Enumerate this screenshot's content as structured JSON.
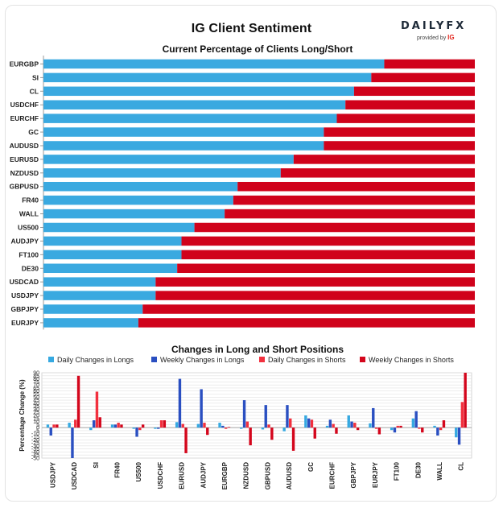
{
  "header": {
    "title": "IG Client Sentiment",
    "logo_main": "DAILYFX",
    "logo_sub": "provided by",
    "logo_brand": "IG"
  },
  "colors": {
    "long": "#3aa9e0",
    "short": "#d0021b",
    "daily_long": "#36a9e1",
    "weekly_long": "#2a4fc1",
    "daily_short": "#f2303e",
    "weekly_short": "#d4061c",
    "grid": "#e0e0e0"
  },
  "chart_data": [
    {
      "type": "bar",
      "orientation": "horizontal",
      "stacked": true,
      "title": "Current Percentage of Clients Long/Short",
      "categories": [
        "EURGBP",
        "SI",
        "CL",
        "USDCHF",
        "EURCHF",
        "GC",
        "AUDUSD",
        "EURUSD",
        "NZDUSD",
        "GBPUSD",
        "FR40",
        "WALL",
        "US500",
        "AUDJPY",
        "FT100",
        "DE30",
        "USDCAD",
        "USDJPY",
        "GBPJPY",
        "EURJPY"
      ],
      "series": [
        {
          "values": [
            79,
            76,
            72,
            70,
            68,
            65,
            65,
            58,
            55,
            45,
            44,
            42,
            35,
            32,
            32,
            31,
            26,
            26,
            23,
            22
          ]
        },
        {
          "values": [
            21,
            24,
            28,
            30,
            32,
            35,
            35,
            42,
            45,
            55,
            56,
            58,
            65,
            68,
            68,
            69,
            74,
            74,
            77,
            78
          ]
        }
      ],
      "xlim": [
        0,
        100
      ],
      "legend": "none"
    },
    {
      "type": "bar",
      "title": "Changes in Long and Short Positions",
      "ylabel": "Percentage Change (%)",
      "ylim": [
        -50,
        90
      ],
      "yticks": [
        -50,
        -45,
        -40,
        -35,
        -30,
        -25,
        -20,
        -15,
        -10,
        -5,
        0,
        5,
        10,
        15,
        20,
        25,
        30,
        35,
        40,
        45,
        50,
        55,
        60,
        65,
        70,
        75,
        80,
        85,
        90
      ],
      "categories": [
        "USDJPY",
        "USDCAD",
        "SI",
        "FR40",
        "US500",
        "USDCHF",
        "EURUSD",
        "AUDJPY",
        "EURGBP",
        "NZDUSD",
        "GBPUSD",
        "AUDUSD",
        "GC",
        "EURCHF",
        "GBPJPY",
        "EURJPY",
        "FT100",
        "DE30",
        "WALL",
        "CL"
      ],
      "series": [
        {
          "name": "Daily Changes in Longs",
          "values": [
            5,
            8,
            -4,
            5,
            -2,
            -2,
            9,
            6,
            8,
            -2,
            -3,
            -6,
            20,
            3,
            20,
            7,
            -4,
            15,
            3,
            -16
          ]
        },
        {
          "name": "Weekly Changes in Longs",
          "values": [
            -13,
            -50,
            12,
            5,
            -15,
            -2,
            80,
            63,
            3,
            45,
            37,
            37,
            15,
            13,
            10,
            32,
            -8,
            27,
            -13,
            -28
          ]
        },
        {
          "name": "Daily Changes in Shorts",
          "values": [
            5,
            13,
            59,
            8,
            -4,
            12,
            6,
            8,
            -2,
            10,
            5,
            15,
            13,
            6,
            8,
            -2,
            3,
            -2,
            -4,
            42
          ]
        },
        {
          "name": "Weekly Changes in Shorts",
          "values": [
            5,
            85,
            17,
            5,
            5,
            12,
            -42,
            -12,
            1,
            -29,
            -20,
            -38,
            -18,
            -10,
            -4,
            -11,
            3,
            -8,
            12,
            90
          ]
        }
      ],
      "legend": "top"
    }
  ]
}
